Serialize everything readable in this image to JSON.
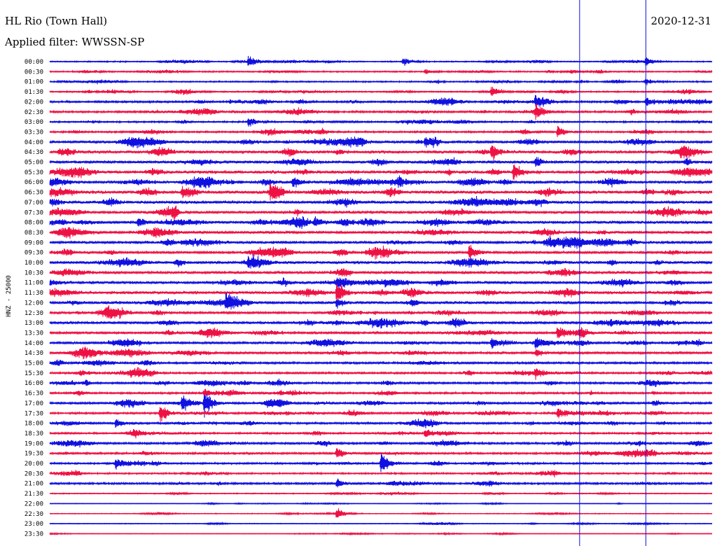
{
  "header": {
    "station": "HL Rio (Town Hall)",
    "date": "2020-12-31",
    "filter": "Applied filter: WWSSN-SP"
  },
  "colors": {
    "trace_a": "#1010e0",
    "trace_b": "#ee1144",
    "marker": "#1010e0",
    "background": "#ffffff"
  },
  "chart_data": {
    "type": "line",
    "ylabel": "HNZ - 25000",
    "y_tick_labels": [
      "00:00",
      "00:30",
      "01:00",
      "01:30",
      "02:00",
      "02:30",
      "03:00",
      "03:30",
      "04:00",
      "04:30",
      "05:00",
      "05:30",
      "06:00",
      "06:30",
      "07:00",
      "07:30",
      "08:00",
      "08:30",
      "09:00",
      "09:30",
      "10:00",
      "10:30",
      "11:00",
      "11:30",
      "12:00",
      "12:30",
      "13:00",
      "13:30",
      "14:00",
      "14:30",
      "15:00",
      "15:30",
      "16:00",
      "16:30",
      "17:00",
      "17:30",
      "18:00",
      "18:30",
      "19:00",
      "19:30",
      "20:00",
      "20:30",
      "21:00",
      "21:30",
      "22:00",
      "22:30",
      "23:00",
      "23:30"
    ],
    "grid": false,
    "noise_level": [
      0.6,
      0.7,
      0.7,
      0.7,
      1.0,
      1.0,
      0.8,
      0.9,
      1.4,
      1.7,
      1.5,
      1.8,
      1.6,
      1.8,
      1.6,
      1.5,
      1.6,
      1.4,
      1.5,
      1.3,
      1.5,
      1.4,
      1.5,
      1.5,
      1.4,
      1.2,
      1.4,
      1.2,
      1.2,
      1.2,
      1.1,
      1.0,
      1.1,
      1.0,
      1.1,
      1.0,
      1.0,
      0.9,
      1.1,
      1.0,
      0.9,
      0.8,
      1.0,
      0.5,
      0.3,
      0.4,
      0.4,
      0.3
    ],
    "events": [
      {
        "row": 0,
        "minute": 9,
        "amp": 6
      },
      {
        "row": 0,
        "minute": 16,
        "amp": 6
      },
      {
        "row": 0,
        "minute": 27,
        "amp": 6
      },
      {
        "row": 1,
        "minute": 17,
        "amp": 4
      },
      {
        "row": 2,
        "minute": 27,
        "amp": 5
      },
      {
        "row": 3,
        "minute": 20,
        "amp": 6
      },
      {
        "row": 4,
        "minute": 22,
        "amp": 8
      },
      {
        "row": 4,
        "minute": 27,
        "amp": 7
      },
      {
        "row": 5,
        "minute": 22,
        "amp": 8
      },
      {
        "row": 6,
        "minute": 9,
        "amp": 7
      },
      {
        "row": 7,
        "minute": 23,
        "amp": 8
      },
      {
        "row": 8,
        "minute": 17,
        "amp": 8
      },
      {
        "row": 9,
        "minute": 20,
        "amp": 12
      },
      {
        "row": 10,
        "minute": 22,
        "amp": 7
      },
      {
        "row": 11,
        "minute": 21,
        "amp": 12
      },
      {
        "row": 12,
        "minute": 11,
        "amp": 8
      },
      {
        "row": 13,
        "minute": 10,
        "amp": 10
      },
      {
        "row": 13,
        "minute": 6,
        "amp": 8
      },
      {
        "row": 16,
        "minute": 4,
        "amp": 7
      },
      {
        "row": 16,
        "minute": 12,
        "amp": 7
      },
      {
        "row": 19,
        "minute": 19,
        "amp": 11
      },
      {
        "row": 20,
        "minute": 9,
        "amp": 7
      },
      {
        "row": 22,
        "minute": 13,
        "amp": 8
      },
      {
        "row": 23,
        "minute": 13,
        "amp": 17
      },
      {
        "row": 24,
        "minute": 8,
        "amp": 9
      },
      {
        "row": 24,
        "minute": 13,
        "amp": 7
      },
      {
        "row": 27,
        "minute": 23,
        "amp": 8
      },
      {
        "row": 28,
        "minute": 20,
        "amp": 8
      },
      {
        "row": 28,
        "minute": 22,
        "amp": 8
      },
      {
        "row": 29,
        "minute": 22,
        "amp": 6
      },
      {
        "row": 31,
        "minute": 22,
        "amp": 6
      },
      {
        "row": 33,
        "minute": 7,
        "amp": 8
      },
      {
        "row": 34,
        "minute": 7,
        "amp": 18
      },
      {
        "row": 34,
        "minute": 6,
        "amp": 10
      },
      {
        "row": 35,
        "minute": 5,
        "amp": 14
      },
      {
        "row": 35,
        "minute": 23,
        "amp": 8
      },
      {
        "row": 36,
        "minute": 3,
        "amp": 7
      },
      {
        "row": 37,
        "minute": 17,
        "amp": 7
      },
      {
        "row": 39,
        "minute": 13,
        "amp": 8
      },
      {
        "row": 40,
        "minute": 15,
        "amp": 18
      },
      {
        "row": 40,
        "minute": 3,
        "amp": 7
      },
      {
        "row": 42,
        "minute": 13,
        "amp": 7
      },
      {
        "row": 45,
        "minute": 13,
        "amp": 8
      }
    ],
    "vertical_markers_minute": [
      24,
      27
    ]
  }
}
